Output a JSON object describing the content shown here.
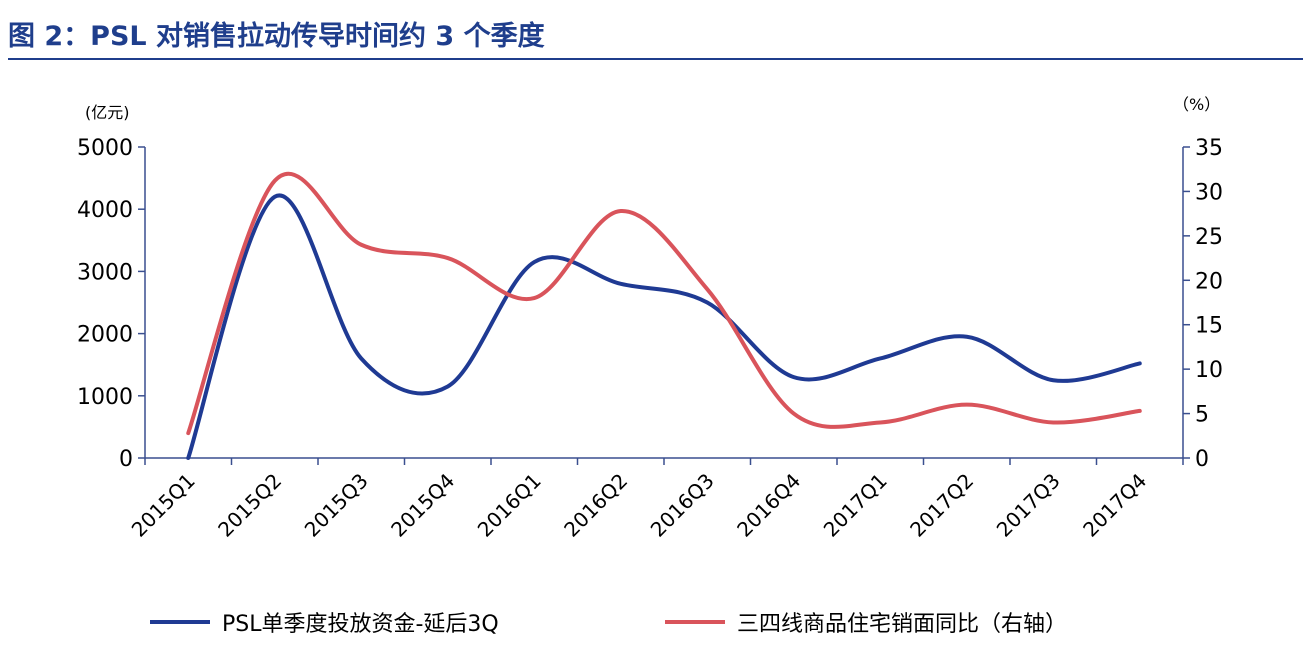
{
  "title": "图 2：PSL 对销售拉动传导时间约 3 个季度",
  "chart_data": {
    "type": "line",
    "categories": [
      "2015Q1",
      "2015Q2",
      "2015Q3",
      "2015Q4",
      "2016Q1",
      "2016Q2",
      "2016Q3",
      "2016Q4",
      "2017Q1",
      "2017Q2",
      "2017Q3",
      "2017Q4"
    ],
    "y_left": {
      "unit": "(亿元)",
      "min": 0,
      "max": 5000,
      "ticks": [
        0,
        1000,
        2000,
        3000,
        4000,
        5000
      ]
    },
    "y_right": {
      "unit": "（%）",
      "min": 0,
      "max": 35,
      "ticks": [
        0,
        5,
        10,
        15,
        20,
        25,
        30,
        35
      ]
    },
    "series": [
      {
        "name": "PSL单季度投放资金-延后3Q",
        "axis": "left",
        "color": "#1f3a93",
        "values": [
          0,
          4200,
          1600,
          1150,
          3150,
          2800,
          2500,
          1300,
          1600,
          1950,
          1250,
          1520
        ]
      },
      {
        "name": "三四线商品住宅销面同比（右轴）",
        "axis": "right",
        "color": "#d9545b",
        "values": [
          2.8,
          31.2,
          24.0,
          22.5,
          18.0,
          27.8,
          19.0,
          5.0,
          4.0,
          6.0,
          4.0,
          5.3
        ]
      }
    ],
    "grid": false,
    "legend_position": "bottom"
  }
}
